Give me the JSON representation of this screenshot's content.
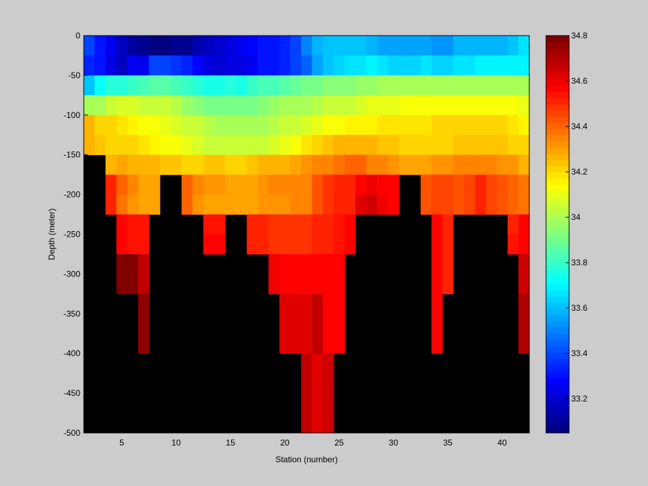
{
  "chart_data": {
    "type": "heatmap",
    "title": "",
    "xlabel": "Station (number)",
    "ylabel": "Depth (meter)",
    "xlim": [
      1.5,
      42.5
    ],
    "ylim": [
      -500,
      0
    ],
    "xticks": [
      5,
      10,
      15,
      20,
      25,
      30,
      35,
      40
    ],
    "yticks": [
      0,
      -50,
      -100,
      -150,
      -200,
      -250,
      -300,
      -350,
      -400,
      -450,
      -500
    ],
    "grid": false,
    "background_color": "#000000",
    "colormap": "jet",
    "colorbar": {
      "range": [
        33.05,
        34.8
      ],
      "ticks": [
        33.2,
        33.4,
        33.6,
        33.8,
        34,
        34.2,
        34.4,
        34.6,
        34.8
      ],
      "tick_labels": [
        "33.2",
        "33.4",
        "33.6",
        "33.8",
        "34",
        "34.2",
        "34.4",
        "34.6",
        "34.8"
      ],
      "levels": 64
    },
    "stations": [
      2,
      3,
      4,
      5,
      6,
      7,
      8,
      9,
      10,
      11,
      12,
      13,
      14,
      15,
      16,
      17,
      18,
      19,
      20,
      21,
      22,
      23,
      24,
      25,
      26,
      27,
      28,
      29,
      30,
      31,
      32,
      33,
      34,
      35,
      36,
      37,
      38,
      39,
      40,
      41,
      42
    ],
    "depths": [
      0,
      -25,
      -50,
      -75,
      -100,
      -125,
      -150,
      -175,
      -200,
      -225,
      -250,
      -275,
      -300,
      -325,
      -350,
      -375,
      -400,
      -425,
      -450,
      -475,
      -500
    ],
    "value_unit": "",
    "salinity": [
      [
        33.38,
        33.3,
        33.25,
        33.18,
        33.12,
        33.08,
        33.06,
        33.06,
        33.08,
        33.1,
        33.14,
        33.18,
        33.2,
        33.22,
        33.26,
        33.28,
        33.3,
        33.32,
        33.35,
        33.4,
        33.5,
        33.58,
        33.62,
        33.62,
        33.62,
        33.62,
        33.58,
        33.56,
        33.56,
        33.56,
        33.56,
        33.56,
        33.52,
        33.52,
        33.58,
        33.58,
        33.58,
        33.58,
        33.58,
        33.62,
        33.66
      ],
      [
        33.35,
        33.3,
        33.22,
        33.18,
        33.25,
        33.25,
        33.38,
        33.38,
        33.36,
        33.34,
        33.28,
        33.22,
        33.2,
        33.22,
        33.24,
        33.26,
        33.3,
        33.32,
        33.34,
        33.38,
        33.45,
        33.55,
        33.62,
        33.65,
        33.66,
        33.66,
        33.68,
        33.66,
        33.64,
        33.64,
        33.64,
        33.66,
        33.64,
        33.64,
        33.66,
        33.66,
        33.7,
        33.7,
        33.7,
        33.7,
        33.7
      ],
      [
        33.62,
        33.72,
        33.78,
        33.78,
        33.8,
        33.82,
        33.85,
        33.85,
        33.82,
        33.8,
        33.78,
        33.76,
        33.74,
        33.78,
        33.76,
        33.8,
        33.82,
        33.84,
        33.86,
        33.88,
        33.9,
        33.92,
        33.94,
        33.94,
        33.94,
        33.96,
        33.96,
        34.0,
        34.0,
        33.98,
        33.98,
        33.98,
        33.98,
        33.98,
        33.98,
        33.98,
        34.0,
        34.0,
        34.0,
        34.0,
        33.98
      ],
      [
        33.98,
        33.98,
        34.06,
        34.08,
        34.08,
        34.06,
        34.04,
        34.04,
        34.02,
        33.96,
        33.94,
        33.9,
        33.9,
        33.9,
        33.9,
        33.92,
        33.94,
        33.96,
        33.98,
        33.98,
        34.0,
        34.02,
        34.04,
        34.06,
        34.06,
        34.08,
        34.1,
        34.1,
        34.1,
        34.12,
        34.12,
        34.12,
        34.12,
        34.12,
        34.12,
        34.12,
        34.12,
        34.12,
        34.12,
        34.12,
        34.1
      ],
      [
        34.26,
        34.2,
        34.2,
        34.18,
        34.16,
        34.14,
        34.12,
        34.1,
        34.08,
        34.06,
        34.04,
        34.02,
        34.0,
        33.98,
        33.98,
        33.98,
        34.0,
        34.02,
        34.04,
        34.06,
        34.08,
        34.1,
        34.12,
        34.14,
        34.16,
        34.16,
        34.16,
        34.18,
        34.18,
        34.18,
        34.18,
        34.18,
        34.2,
        34.2,
        34.2,
        34.2,
        34.2,
        34.2,
        34.2,
        34.18,
        34.16
      ],
      [
        34.26,
        34.24,
        34.22,
        34.22,
        34.2,
        34.18,
        34.16,
        34.14,
        34.12,
        34.1,
        34.08,
        34.06,
        34.04,
        34.04,
        34.04,
        34.04,
        34.06,
        34.08,
        34.1,
        34.14,
        34.18,
        34.2,
        34.24,
        34.26,
        34.28,
        34.28,
        34.26,
        34.24,
        34.24,
        34.22,
        34.22,
        34.22,
        34.22,
        34.22,
        34.24,
        34.24,
        34.24,
        34.24,
        34.24,
        34.22,
        34.2
      ],
      [
        null,
        null,
        34.28,
        34.3,
        34.28,
        34.26,
        34.26,
        34.24,
        34.24,
        34.22,
        34.22,
        34.24,
        34.24,
        34.22,
        34.22,
        34.24,
        34.26,
        34.26,
        34.28,
        34.3,
        34.32,
        34.34,
        34.36,
        34.38,
        34.4,
        34.4,
        34.36,
        34.34,
        34.32,
        34.3,
        34.3,
        34.3,
        34.32,
        34.32,
        34.34,
        34.36,
        34.36,
        34.34,
        34.32,
        34.32,
        34.28
      ],
      [
        null,
        null,
        34.52,
        34.4,
        34.34,
        34.3,
        34.3,
        null,
        null,
        34.4,
        34.34,
        34.32,
        34.32,
        34.3,
        34.3,
        34.3,
        34.32,
        34.34,
        34.34,
        34.34,
        34.36,
        34.42,
        34.48,
        34.5,
        34.5,
        34.56,
        34.6,
        34.58,
        34.56,
        null,
        null,
        34.44,
        34.46,
        34.46,
        34.42,
        34.46,
        34.5,
        34.46,
        34.42,
        34.4,
        34.38
      ],
      [
        null,
        null,
        34.52,
        34.38,
        34.32,
        34.3,
        34.3,
        null,
        null,
        34.4,
        34.32,
        34.3,
        34.3,
        34.3,
        34.3,
        34.3,
        34.32,
        34.32,
        34.32,
        34.34,
        34.36,
        34.42,
        34.48,
        34.5,
        34.5,
        34.62,
        34.64,
        34.6,
        34.58,
        null,
        null,
        34.44,
        34.46,
        34.46,
        34.42,
        34.46,
        34.5,
        34.46,
        34.42,
        34.4,
        34.38
      ],
      [
        null,
        null,
        null,
        34.56,
        34.54,
        34.54,
        null,
        null,
        null,
        null,
        null,
        34.54,
        34.54,
        null,
        null,
        34.52,
        34.5,
        34.48,
        34.48,
        34.48,
        34.48,
        34.5,
        34.52,
        34.54,
        34.56,
        null,
        null,
        null,
        null,
        null,
        null,
        null,
        34.56,
        34.52,
        null,
        null,
        null,
        null,
        null,
        34.52,
        34.56
      ],
      [
        null,
        null,
        null,
        34.56,
        34.54,
        34.54,
        null,
        null,
        null,
        null,
        null,
        34.56,
        34.56,
        null,
        null,
        34.52,
        34.5,
        34.48,
        34.48,
        34.48,
        34.48,
        34.5,
        34.52,
        34.54,
        34.56,
        null,
        null,
        null,
        null,
        null,
        null,
        null,
        34.56,
        34.52,
        null,
        null,
        null,
        null,
        null,
        34.54,
        34.56
      ],
      [
        null,
        null,
        null,
        34.78,
        34.78,
        34.68,
        null,
        null,
        null,
        null,
        null,
        null,
        null,
        null,
        null,
        null,
        null,
        34.6,
        34.58,
        34.58,
        34.58,
        34.58,
        34.56,
        34.56,
        null,
        null,
        null,
        null,
        null,
        null,
        null,
        null,
        34.58,
        34.52,
        null,
        null,
        null,
        null,
        null,
        null,
        34.64
      ],
      [
        null,
        null,
        null,
        34.78,
        34.78,
        34.68,
        null,
        null,
        null,
        null,
        null,
        null,
        null,
        null,
        null,
        null,
        null,
        34.6,
        34.58,
        34.58,
        34.58,
        34.58,
        34.56,
        34.56,
        null,
        null,
        null,
        null,
        null,
        null,
        null,
        null,
        34.58,
        34.52,
        null,
        null,
        null,
        null,
        null,
        null,
        34.64
      ],
      [
        null,
        null,
        null,
        null,
        null,
        34.76,
        null,
        null,
        null,
        null,
        null,
        null,
        null,
        null,
        null,
        null,
        null,
        null,
        34.62,
        34.62,
        34.62,
        34.68,
        34.58,
        34.56,
        null,
        null,
        null,
        null,
        null,
        null,
        null,
        null,
        34.58,
        null,
        null,
        null,
        null,
        null,
        null,
        null,
        34.7
      ],
      [
        null,
        null,
        null,
        null,
        null,
        34.76,
        null,
        null,
        null,
        null,
        null,
        null,
        null,
        null,
        null,
        null,
        null,
        null,
        34.62,
        34.62,
        34.62,
        34.68,
        34.58,
        34.56,
        null,
        null,
        null,
        null,
        null,
        null,
        null,
        null,
        34.58,
        null,
        null,
        null,
        null,
        null,
        null,
        null,
        34.7
      ],
      [
        null,
        null,
        null,
        null,
        null,
        34.76,
        null,
        null,
        null,
        null,
        null,
        null,
        null,
        null,
        null,
        null,
        null,
        null,
        34.62,
        34.62,
        34.62,
        34.68,
        34.58,
        34.56,
        null,
        null,
        null,
        null,
        null,
        null,
        null,
        null,
        34.58,
        null,
        null,
        null,
        null,
        null,
        null,
        null,
        34.7
      ],
      [
        null,
        null,
        null,
        null,
        null,
        null,
        null,
        null,
        null,
        null,
        null,
        null,
        null,
        null,
        null,
        null,
        null,
        null,
        null,
        null,
        34.68,
        34.62,
        34.66,
        null,
        null,
        null,
        null,
        null,
        null,
        null,
        null,
        null,
        null,
        null,
        null,
        null,
        null,
        null,
        null,
        null,
        null
      ],
      [
        null,
        null,
        null,
        null,
        null,
        null,
        null,
        null,
        null,
        null,
        null,
        null,
        null,
        null,
        null,
        null,
        null,
        null,
        null,
        null,
        34.68,
        34.62,
        34.66,
        null,
        null,
        null,
        null,
        null,
        null,
        null,
        null,
        null,
        null,
        null,
        null,
        null,
        null,
        null,
        null,
        null,
        null
      ],
      [
        null,
        null,
        null,
        null,
        null,
        null,
        null,
        null,
        null,
        null,
        null,
        null,
        null,
        null,
        null,
        null,
        null,
        null,
        null,
        null,
        34.68,
        34.62,
        34.66,
        null,
        null,
        null,
        null,
        null,
        null,
        null,
        null,
        null,
        null,
        null,
        null,
        null,
        null,
        null,
        null,
        null,
        null
      ],
      [
        null,
        null,
        null,
        null,
        null,
        null,
        null,
        null,
        null,
        null,
        null,
        null,
        null,
        null,
        null,
        null,
        null,
        null,
        null,
        null,
        34.68,
        34.62,
        34.66,
        null,
        null,
        null,
        null,
        null,
        null,
        null,
        null,
        null,
        null,
        null,
        null,
        null,
        null,
        null,
        null,
        null,
        null
      ],
      [
        null,
        null,
        null,
        null,
        null,
        null,
        null,
        null,
        null,
        null,
        null,
        null,
        null,
        null,
        null,
        null,
        null,
        null,
        null,
        null,
        null,
        null,
        null,
        null,
        null,
        null,
        null,
        null,
        null,
        null,
        null,
        null,
        null,
        null,
        null,
        null,
        null,
        null,
        null,
        null,
        null
      ]
    ]
  }
}
